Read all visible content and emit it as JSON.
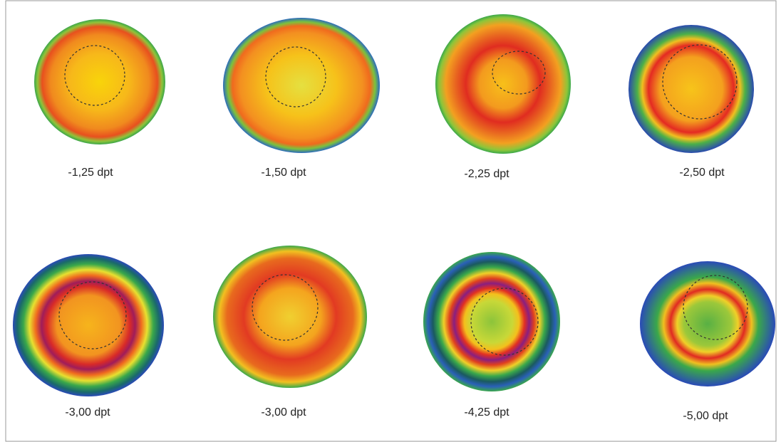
{
  "maps": [
    {
      "label": "-1,25 dpt"
    },
    {
      "label": "-1,50 dpt"
    },
    {
      "label": "-2,25 dpt"
    },
    {
      "label": "-2,50 dpt"
    },
    {
      "label": "-3,00 dpt"
    },
    {
      "label": "-3,00 dpt"
    },
    {
      "label": "-4,25 dpt"
    },
    {
      "label": "-5,00 dpt"
    }
  ]
}
